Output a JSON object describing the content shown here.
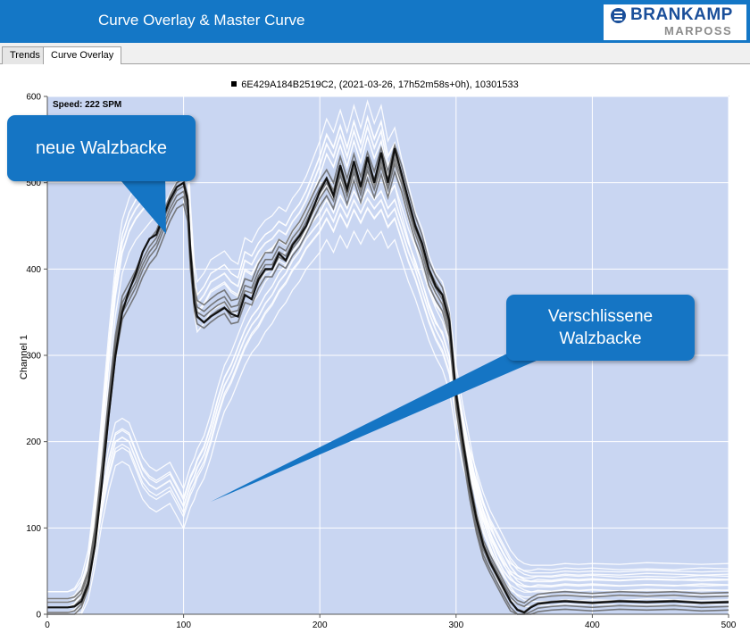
{
  "app": {
    "title": "Curve Overlay & Master Curve",
    "logo_top": "BRANKAMP",
    "logo_bottom": "MARPOSS",
    "logo_icon": "brankamp-logo-icon"
  },
  "tabs": [
    {
      "label": "Trends",
      "active": false
    },
    {
      "label": "Curve Overlay",
      "active": true
    }
  ],
  "legend": {
    "label": "6E429A184B2519C2, (2021-03-26, 17h52m58s+0h), 10301533"
  },
  "colors": {
    "title_bar": "#1477c6",
    "plot_background": "#c9d6f2",
    "grid": "#ffffff",
    "master_curve": "#111111",
    "dark_overlay": "#666666",
    "light_overlay": "#ffffff",
    "callout": "#1575c4"
  },
  "callouts": {
    "new_die": "neue Walzbacke",
    "worn_die_line1": "Verschlissene",
    "worn_die_line2": "Walzbacke"
  },
  "chart_data": {
    "type": "line",
    "title": "",
    "xlabel": "",
    "ylabel": "Channel 1",
    "annotation": "Speed: 222 SPM",
    "xlim": [
      0,
      500
    ],
    "ylim": [
      0,
      600
    ],
    "x_ticks": [
      0,
      100,
      200,
      300,
      400,
      500
    ],
    "y_ticks": [
      0,
      100,
      200,
      300,
      400,
      500,
      600
    ],
    "grid": true,
    "series": [
      {
        "role": "master",
        "x": [
          0,
          15,
          20,
          25,
          30,
          35,
          40,
          45,
          50,
          55,
          60,
          65,
          70,
          75,
          80,
          85,
          90,
          95,
          100,
          103,
          105,
          108,
          110,
          115,
          120,
          125,
          130,
          135,
          140,
          145,
          150,
          155,
          160,
          165,
          170,
          175,
          180,
          185,
          190,
          195,
          200,
          205,
          210,
          215,
          220,
          225,
          230,
          235,
          240,
          245,
          250,
          255,
          260,
          265,
          270,
          275,
          280,
          285,
          290,
          295,
          300,
          305,
          310,
          315,
          320,
          325,
          330,
          335,
          340,
          345,
          350,
          355,
          360,
          370,
          380,
          390,
          400,
          420,
          440,
          460,
          480,
          500
        ],
        "y": [
          8,
          8,
          9,
          15,
          35,
          80,
          150,
          230,
          300,
          350,
          375,
          395,
          420,
          435,
          440,
          460,
          480,
          495,
          500,
          480,
          420,
          360,
          345,
          338,
          345,
          350,
          355,
          348,
          345,
          370,
          365,
          388,
          400,
          400,
          418,
          410,
          428,
          438,
          450,
          470,
          490,
          505,
          485,
          520,
          492,
          525,
          495,
          530,
          500,
          535,
          500,
          540,
          510,
          480,
          450,
          430,
          400,
          380,
          370,
          340,
          255,
          200,
          150,
          110,
          80,
          60,
          45,
          30,
          15,
          5,
          2,
          8,
          12,
          14,
          15,
          14,
          13,
          15,
          14,
          15,
          13,
          14
        ]
      },
      {
        "role": "dark_overlay",
        "x": [
          0,
          15,
          20,
          25,
          30,
          35,
          40,
          45,
          50,
          55,
          60,
          65,
          70,
          75,
          80,
          85,
          90,
          95,
          100,
          103,
          105,
          108,
          110,
          115,
          120,
          125,
          130,
          135,
          140,
          145,
          150,
          155,
          160,
          165,
          170,
          175,
          180,
          185,
          190,
          195,
          200,
          205,
          210,
          215,
          220,
          225,
          230,
          235,
          240,
          245,
          250,
          255,
          260,
          265,
          270,
          275,
          280,
          285,
          290,
          295,
          300,
          305,
          310,
          315,
          320,
          325,
          330,
          335,
          340,
          345,
          350,
          355,
          360,
          370,
          380,
          390,
          400,
          420,
          440,
          460,
          480,
          500
        ],
        "y": [
          8,
          8,
          10,
          18,
          40,
          90,
          160,
          240,
          310,
          355,
          370,
          385,
          405,
          420,
          430,
          450,
          470,
          485,
          490,
          470,
          415,
          365,
          350,
          345,
          352,
          358,
          362,
          350,
          352,
          375,
          372,
          392,
          405,
          405,
          420,
          415,
          430,
          440,
          455,
          472,
          488,
          500,
          485,
          515,
          490,
          518,
          492,
          520,
          498,
          525,
          498,
          528,
          505,
          475,
          447,
          425,
          395,
          378,
          365,
          335,
          250,
          195,
          145,
          105,
          75,
          58,
          43,
          28,
          14,
          6,
          3,
          9,
          13,
          15,
          16,
          15,
          14,
          16,
          15,
          16,
          14,
          15
        ]
      },
      {
        "role": "white_overlay_new",
        "x": [
          0,
          15,
          20,
          25,
          30,
          35,
          40,
          45,
          50,
          55,
          60,
          65,
          70,
          75,
          80,
          85,
          90,
          95,
          100,
          103,
          105,
          108,
          110,
          115,
          120,
          125,
          130,
          135,
          140,
          145,
          150,
          155,
          160,
          165,
          170,
          175,
          180,
          185,
          190,
          195,
          200,
          205,
          210,
          215,
          220,
          225,
          230,
          235,
          240,
          245,
          250,
          255,
          260,
          265,
          270,
          275,
          280,
          285,
          290,
          295,
          300,
          305,
          310,
          315,
          320,
          325,
          330,
          335,
          340,
          345,
          350,
          355,
          360,
          370,
          380,
          390,
          400,
          420,
          440,
          460,
          480,
          500
        ],
        "y": [
          8,
          8,
          12,
          25,
          55,
          120,
          210,
          300,
          380,
          430,
          455,
          470,
          480,
          490,
          500,
          510,
          525,
          540,
          545,
          520,
          450,
          380,
          360,
          370,
          385,
          390,
          395,
          385,
          380,
          410,
          405,
          420,
          430,
          435,
          445,
          440,
          455,
          465,
          480,
          500,
          520,
          545,
          530,
          555,
          530,
          560,
          535,
          565,
          540,
          560,
          520,
          535,
          500,
          470,
          440,
          420,
          390,
          370,
          360,
          330,
          265,
          220,
          180,
          140,
          110,
          85,
          65,
          50,
          40,
          35,
          32,
          32,
          34,
          33,
          35,
          34,
          35,
          33,
          34,
          33,
          35,
          34
        ]
      },
      {
        "role": "white_overlay_worn",
        "x": [
          0,
          15,
          20,
          25,
          30,
          35,
          40,
          45,
          50,
          55,
          60,
          65,
          70,
          75,
          80,
          85,
          90,
          95,
          100,
          103,
          105,
          108,
          110,
          115,
          120,
          125,
          130,
          135,
          140,
          145,
          150,
          155,
          160,
          165,
          170,
          175,
          180,
          185,
          190,
          195,
          200,
          205,
          210,
          215,
          220,
          225,
          230,
          235,
          240,
          245,
          250,
          255,
          260,
          265,
          270,
          275,
          280,
          285,
          290,
          295,
          300,
          305,
          310,
          315,
          320,
          325,
          330,
          335,
          340,
          345,
          350,
          355,
          360,
          370,
          380,
          390,
          400,
          420,
          440,
          460,
          480,
          500
        ],
        "y": [
          8,
          8,
          10,
          20,
          40,
          80,
          130,
          170,
          200,
          205,
          200,
          180,
          160,
          150,
          145,
          150,
          155,
          140,
          125,
          140,
          150,
          160,
          170,
          185,
          210,
          240,
          265,
          280,
          300,
          320,
          335,
          345,
          360,
          370,
          385,
          395,
          410,
          420,
          435,
          445,
          455,
          470,
          455,
          475,
          460,
          480,
          465,
          482,
          470,
          480,
          460,
          470,
          445,
          420,
          400,
          375,
          350,
          330,
          315,
          290,
          240,
          200,
          170,
          145,
          120,
          100,
          85,
          70,
          55,
          45,
          40,
          38,
          38,
          38,
          40,
          39,
          40,
          39,
          41,
          40,
          39,
          40
        ]
      }
    ]
  }
}
